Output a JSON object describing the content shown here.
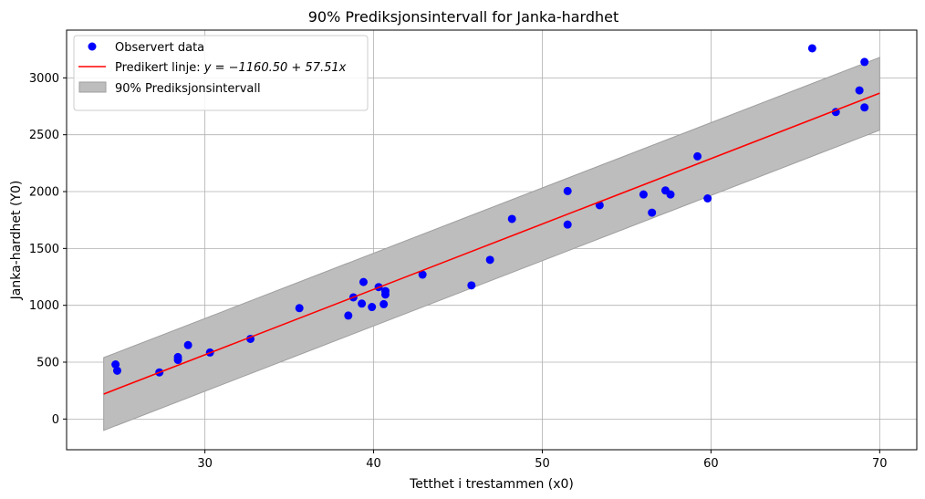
{
  "chart_data": {
    "type": "scatter",
    "title": "90% Prediksjonsintervall for Janka-hardhet",
    "xlabel": "Tetthet i trestammen (x0)",
    "ylabel": "Janka-hardhet (Y0)",
    "xlim": [
      21.8,
      72.2
    ],
    "ylim": [
      -270,
      3420
    ],
    "xticks": [
      30,
      40,
      50,
      60,
      70
    ],
    "yticks": [
      0,
      500,
      1000,
      1500,
      2000,
      2500,
      3000
    ],
    "grid": true,
    "legend_position": "top-left",
    "legend": {
      "points_label": "Observert data",
      "line_label_prefix": "Predikert linje: ",
      "line_equation": "y = −1160.50 + 57.51x",
      "band_label": "90% Prediksjonsintervall"
    },
    "fit": {
      "intercept": -1160.5,
      "slope": 57.51,
      "x_range": [
        24,
        70
      ]
    },
    "interval": {
      "lower_start": -100,
      "upper_start": 540,
      "lower_end": 2540,
      "upper_end": 3180
    },
    "colors": {
      "points": "#0000ff",
      "line": "#ff0000",
      "band": "#bdbdbd",
      "band_edge": "#9e9e9e",
      "grid": "#b0b0b0"
    },
    "points": [
      {
        "x": 24.7,
        "y": 480
      },
      {
        "x": 24.8,
        "y": 425
      },
      {
        "x": 27.3,
        "y": 410
      },
      {
        "x": 28.4,
        "y": 520
      },
      {
        "x": 28.4,
        "y": 545
      },
      {
        "x": 29.0,
        "y": 650
      },
      {
        "x": 30.3,
        "y": 585
      },
      {
        "x": 32.7,
        "y": 705
      },
      {
        "x": 35.6,
        "y": 975
      },
      {
        "x": 38.5,
        "y": 910
      },
      {
        "x": 38.8,
        "y": 1070
      },
      {
        "x": 39.3,
        "y": 1015
      },
      {
        "x": 39.4,
        "y": 1205
      },
      {
        "x": 39.9,
        "y": 985
      },
      {
        "x": 40.3,
        "y": 1160
      },
      {
        "x": 40.6,
        "y": 1010
      },
      {
        "x": 40.7,
        "y": 1125
      },
      {
        "x": 40.7,
        "y": 1095
      },
      {
        "x": 42.9,
        "y": 1270
      },
      {
        "x": 45.8,
        "y": 1175
      },
      {
        "x": 46.9,
        "y": 1400
      },
      {
        "x": 48.2,
        "y": 1760
      },
      {
        "x": 51.5,
        "y": 2005
      },
      {
        "x": 51.5,
        "y": 1710
      },
      {
        "x": 53.4,
        "y": 1880
      },
      {
        "x": 56.0,
        "y": 1975
      },
      {
        "x": 56.5,
        "y": 1815
      },
      {
        "x": 57.3,
        "y": 2010
      },
      {
        "x": 57.6,
        "y": 1975
      },
      {
        "x": 59.2,
        "y": 2310
      },
      {
        "x": 59.8,
        "y": 1940
      },
      {
        "x": 66.0,
        "y": 3260
      },
      {
        "x": 67.4,
        "y": 2700
      },
      {
        "x": 68.8,
        "y": 2890
      },
      {
        "x": 69.1,
        "y": 3140
      },
      {
        "x": 69.1,
        "y": 2740
      }
    ]
  }
}
